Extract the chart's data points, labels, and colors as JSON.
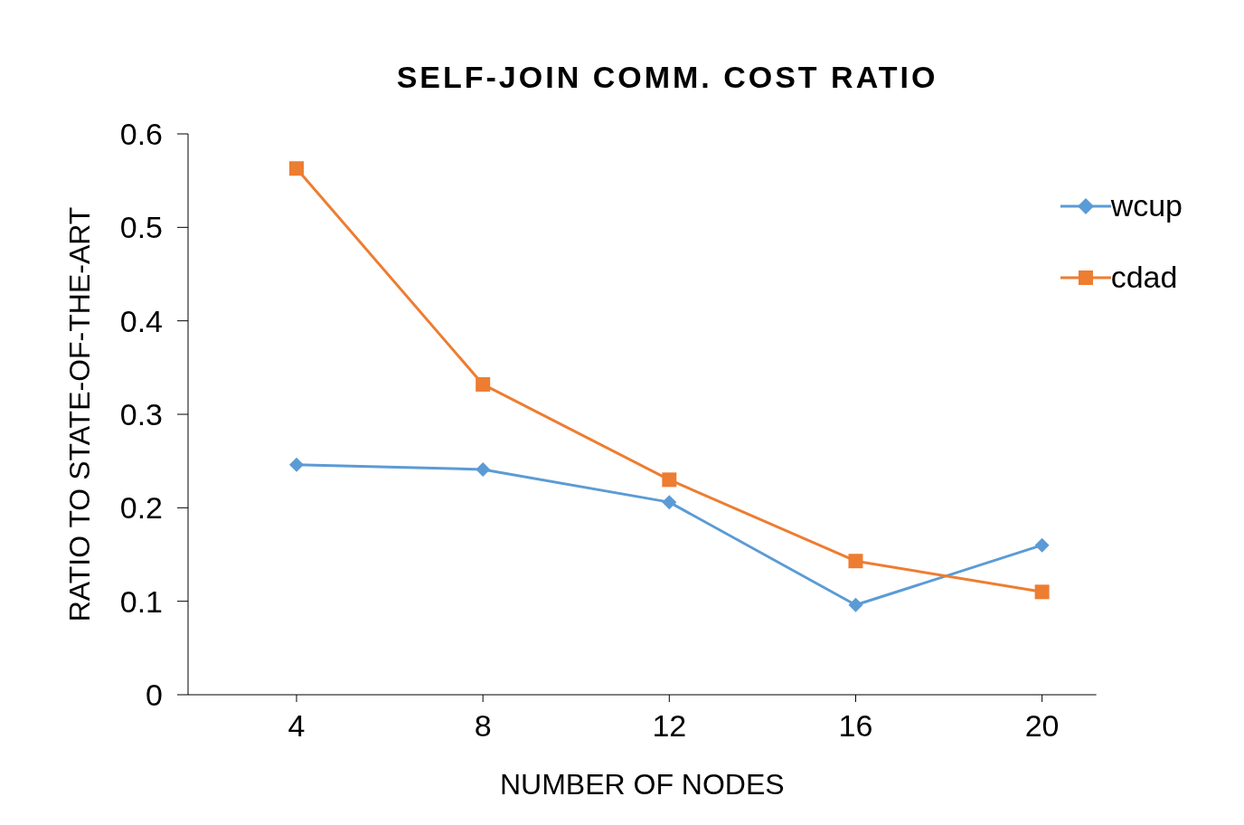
{
  "chart_data": {
    "type": "line",
    "title": "SELF-JOIN COMM. COST RATIO",
    "xlabel": "NUMBER OF NODES",
    "ylabel": "RATIO TO STATE-OF-THE-ART",
    "categories": [
      "4",
      "8",
      "12",
      "16",
      "20"
    ],
    "series": [
      {
        "name": "wcup",
        "color": "#5b9bd5",
        "marker": "diamond",
        "values": [
          0.246,
          0.241,
          0.206,
          0.096,
          0.16
        ]
      },
      {
        "name": "cdad",
        "color": "#ed7d31",
        "marker": "square",
        "values": [
          0.563,
          0.332,
          0.23,
          0.143,
          0.11
        ]
      }
    ],
    "ylim": [
      0,
      0.6
    ],
    "yticks": [
      0,
      0.1,
      0.2,
      0.3,
      0.4,
      0.5,
      0.6
    ],
    "grid": false,
    "legend": "top right",
    "line_style": "solid"
  }
}
